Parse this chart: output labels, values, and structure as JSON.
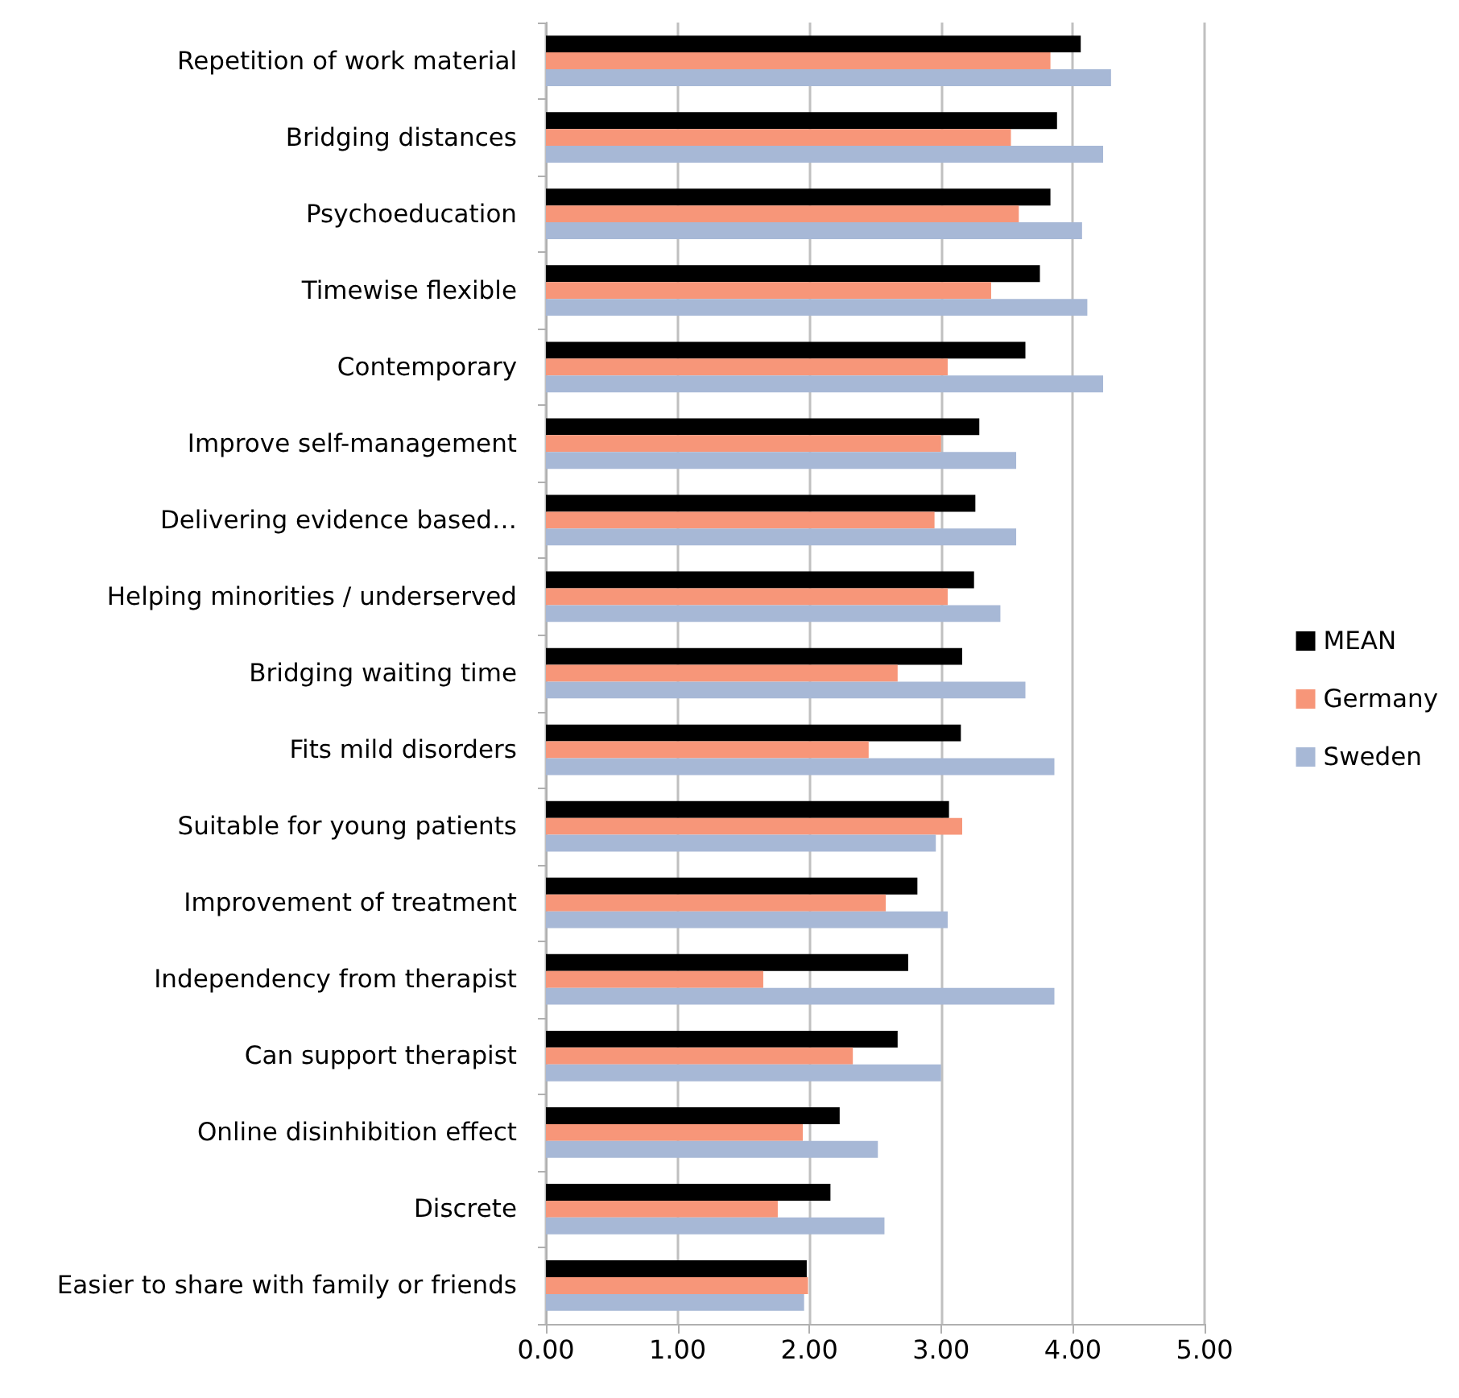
{
  "chart_data": {
    "type": "bar",
    "orientation": "horizontal",
    "categories": [
      "Repetition of work material",
      "Bridging distances",
      "Psychoeducation",
      "Timewise flexible",
      "Contemporary",
      "Improve self-management",
      "Delivering evidence based…",
      "Helping minorities / underserved",
      "Bridging waiting time",
      "Fits mild disorders",
      "Suitable for young patients",
      "Improvement of treatment",
      "Independency from therapist",
      "Can support therapist",
      "Online disinhibition effect",
      "Discrete",
      "Easier to share with family or friends"
    ],
    "series": [
      {
        "name": "MEAN",
        "color": "#000000",
        "values": [
          4.06,
          3.88,
          3.83,
          3.75,
          3.64,
          3.29,
          3.26,
          3.25,
          3.16,
          3.15,
          3.06,
          2.82,
          2.75,
          2.67,
          2.23,
          2.16,
          1.98
        ]
      },
      {
        "name": "Germany",
        "color": "#f79679",
        "values": [
          3.83,
          3.53,
          3.59,
          3.38,
          3.05,
          3.0,
          2.95,
          3.05,
          2.67,
          2.45,
          3.16,
          2.58,
          1.65,
          2.33,
          1.95,
          1.76,
          1.99
        ]
      },
      {
        "name": "Sweden",
        "color": "#a7b8d6",
        "values": [
          4.29,
          4.23,
          4.07,
          4.11,
          4.23,
          3.57,
          3.57,
          3.45,
          3.64,
          3.86,
          2.96,
          3.05,
          3.86,
          3.0,
          2.52,
          2.57,
          1.96
        ]
      }
    ],
    "xlim": [
      0,
      5
    ],
    "xticks": [
      {
        "value": 0,
        "label": "0.00"
      },
      {
        "value": 1,
        "label": "1.00"
      },
      {
        "value": 2,
        "label": "2.00"
      },
      {
        "value": 3,
        "label": "3.00"
      },
      {
        "value": 4,
        "label": "4.00"
      },
      {
        "value": 5,
        "label": "5.00"
      }
    ],
    "grid": "x",
    "legend": "right"
  }
}
